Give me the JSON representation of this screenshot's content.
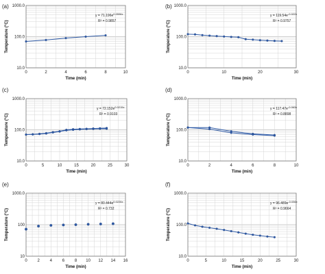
{
  "chart_data": [
    {
      "panel": "(a)",
      "type": "line",
      "ylabel": "Temperature (°C)",
      "xlabel": "Time (min)",
      "y_scale": "log",
      "ylim": [
        10,
        1000
      ],
      "xlim": [
        0,
        10
      ],
      "xticks": [
        "0",
        "2",
        "4",
        "6",
        "8",
        "10"
      ],
      "yticks": [
        "10.0",
        "100.0",
        "1000.0"
      ],
      "equation": "y = 71.196e^0.0596x",
      "r2": "R² = 0.9857",
      "series": [
        {
          "points": [
            [
              0,
              70
            ],
            [
              2,
              78
            ],
            [
              4,
              90
            ],
            [
              6,
              100
            ],
            [
              8,
              110
            ]
          ]
        }
      ]
    },
    {
      "panel": "(b)",
      "type": "line",
      "ylabel": "Temperature (°C)",
      "xlabel": "Time (min)",
      "y_scale": "log",
      "ylim": [
        10,
        1000
      ],
      "xlim": [
        0,
        30
      ],
      "xticks": [
        "0",
        "10",
        "20",
        "30"
      ],
      "yticks": [
        "10.0",
        "100.0",
        "1000.0"
      ],
      "equation": "y = 119.54e^-0.022x",
      "r2": "R² = 0.9757",
      "series": [
        {
          "points": [
            [
              0,
              120
            ],
            [
              2,
              118
            ],
            [
              4,
              112
            ],
            [
              6,
              108
            ],
            [
              8,
              104
            ],
            [
              10,
              101
            ],
            [
              12,
              98
            ],
            [
              14,
              96
            ],
            [
              16,
              83
            ],
            [
              18,
              80
            ],
            [
              20,
              77
            ],
            [
              22,
              75
            ],
            [
              24,
              73
            ],
            [
              26,
              72
            ]
          ]
        }
      ]
    },
    {
      "panel": "(c)",
      "type": "line",
      "ylabel": "Temperature (°C)",
      "xlabel": "Time (min)",
      "y_scale": "log",
      "ylim": [
        10,
        1000
      ],
      "xlim": [
        0,
        30
      ],
      "xticks": [
        "0",
        "5",
        "10",
        "15",
        "20",
        "25",
        "30"
      ],
      "yticks": [
        "10.0",
        "100.0",
        "1000.0"
      ],
      "equation": "y = 72.152e^0.0215x",
      "r2": "R² = 0.9103",
      "series": [
        {
          "points": [
            [
              0,
              70
            ],
            [
              2,
              72
            ],
            [
              4,
              74
            ],
            [
              6,
              78
            ],
            [
              8,
              84
            ],
            [
              10,
              90
            ],
            [
              12,
              100
            ],
            [
              14,
              104
            ],
            [
              16,
              106
            ],
            [
              18,
              108
            ],
            [
              20,
              110
            ],
            [
              22,
              112
            ],
            [
              24,
              114
            ]
          ]
        },
        {
          "points": [
            [
              0,
              70
            ],
            [
              2,
              71
            ],
            [
              4,
              73
            ],
            [
              6,
              76
            ],
            [
              8,
              82
            ],
            [
              10,
              88
            ],
            [
              12,
              96
            ],
            [
              14,
              100
            ],
            [
              16,
              103
            ],
            [
              18,
              105
            ],
            [
              20,
              107
            ],
            [
              22,
              108
            ],
            [
              24,
              108
            ]
          ]
        }
      ]
    },
    {
      "panel": "(d)",
      "type": "line",
      "ylabel": "Temperature (°C)",
      "xlabel": "Time (min)",
      "y_scale": "log",
      "ylim": [
        10,
        1000
      ],
      "xlim": [
        0,
        10
      ],
      "xticks": [
        "0",
        "2",
        "4",
        "6",
        "8",
        "10"
      ],
      "yticks": [
        "10.0",
        "100.0",
        "1000.0"
      ],
      "equation": "y = 117.47e^-0.063x",
      "r2": "R² = 0.8898",
      "series": [
        {
          "points": [
            [
              0,
              118
            ],
            [
              2,
              118
            ],
            [
              4,
              90
            ],
            [
              6,
              74
            ],
            [
              8,
              68
            ]
          ]
        },
        {
          "points": [
            [
              0,
              118
            ],
            [
              2,
              105
            ],
            [
              4,
              80
            ],
            [
              6,
              70
            ],
            [
              8,
              65
            ]
          ]
        }
      ]
    },
    {
      "panel": "(e)",
      "type": "scatter",
      "ylabel": "Temperature (°C)",
      "xlabel": "Time (min)",
      "y_scale": "log",
      "ylim": [
        10,
        1000
      ],
      "xlim": [
        0,
        16
      ],
      "xticks": [
        "0",
        "2",
        "4",
        "6",
        "8",
        "10",
        "12",
        "14",
        "16"
      ],
      "yticks": [
        "10",
        "100",
        "1000.0"
      ],
      "equation": "y = 80.444e^0.0226x",
      "r2": "R² = 0.732",
      "series": [
        {
          "points": [
            [
              0,
              72
            ],
            [
              2,
              90
            ],
            [
              4,
              95
            ],
            [
              6,
              98
            ],
            [
              8,
              100
            ],
            [
              10,
              103
            ],
            [
              12,
              105
            ],
            [
              14,
              107
            ]
          ]
        }
      ]
    },
    {
      "panel": "(f)",
      "type": "line",
      "ylabel": "Temperature (°C)",
      "xlabel": "Time (min)",
      "y_scale": "log",
      "ylim": [
        10,
        1000
      ],
      "xlim": [
        0,
        30
      ],
      "xticks": [
        "0",
        "5",
        "10",
        "15",
        "20",
        "25",
        "30"
      ],
      "yticks": [
        "10.0",
        "100.0",
        "1000.0"
      ],
      "equation": "y = 96.489e^-0.036x",
      "r2": "R² = 0.9664",
      "series": [
        {
          "points": [
            [
              0,
              110
            ],
            [
              2,
              95
            ],
            [
              4,
              86
            ],
            [
              6,
              80
            ],
            [
              8,
              74
            ],
            [
              10,
              68
            ],
            [
              12,
              62
            ],
            [
              14,
              57
            ],
            [
              16,
              52
            ],
            [
              18,
              48
            ],
            [
              20,
              45
            ],
            [
              22,
              42
            ],
            [
              24,
              40
            ]
          ]
        }
      ]
    }
  ]
}
